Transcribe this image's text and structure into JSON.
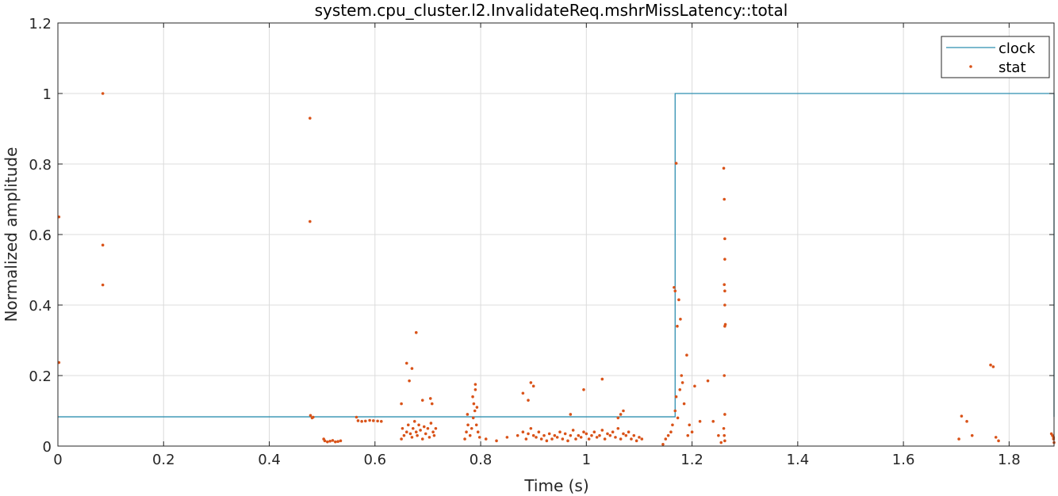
{
  "chart_data": {
    "type": "line",
    "title": "system.cpu_cluster.l2.InvalidateReq.mshrMissLatency::total",
    "xlabel": "Time (s)",
    "ylabel": "Normalized amplitude",
    "xlim": [
      0,
      1.885
    ],
    "ylim": [
      0,
      1.2
    ],
    "xticks": [
      0,
      0.2,
      0.4,
      0.6,
      0.8,
      1,
      1.2,
      1.4,
      1.6,
      1.8
    ],
    "xtick_labels": [
      "0",
      "0.2",
      "0.4",
      "0.6",
      "0.8",
      "1",
      "1.2",
      "1.4",
      "1.6",
      "1.8"
    ],
    "yticks": [
      0,
      0.2,
      0.4,
      0.6,
      0.8,
      1,
      1.2
    ],
    "ytick_labels": [
      "0",
      "0.2",
      "0.4",
      "0.6",
      "0.8",
      "1",
      "1.2"
    ],
    "grid": true,
    "legend_position": "top-right",
    "series": [
      {
        "name": "clock",
        "style": "line",
        "color": "#2f8fb0",
        "x": [
          0,
          1.168,
          1.168,
          1.885,
          1.885
        ],
        "y": [
          0.083,
          0.083,
          1.0,
          1.0,
          0.083
        ]
      },
      {
        "name": "stat",
        "style": "markers",
        "color": "#d95319",
        "x": [
          0.002,
          0.002,
          0.085,
          0.085,
          0.085,
          0.477,
          0.477,
          0.478,
          0.481,
          0.483,
          0.503,
          0.505,
          0.51,
          0.515,
          0.52,
          0.525,
          0.53,
          0.535,
          0.565,
          0.568,
          0.575,
          0.582,
          0.59,
          0.597,
          0.605,
          0.612,
          0.65,
          0.652,
          0.655,
          0.66,
          0.663,
          0.667,
          0.67,
          0.672,
          0.675,
          0.678,
          0.68,
          0.683,
          0.686,
          0.69,
          0.693,
          0.696,
          0.7,
          0.703,
          0.706,
          0.71,
          0.712,
          0.715,
          0.678,
          0.67,
          0.665,
          0.69,
          0.705,
          0.708,
          0.66,
          0.65,
          0.77,
          0.773,
          0.776,
          0.78,
          0.783,
          0.786,
          0.789,
          0.792,
          0.795,
          0.798,
          0.785,
          0.79,
          0.79,
          0.787,
          0.793,
          0.775,
          0.81,
          0.83,
          0.85,
          0.87,
          0.88,
          0.886,
          0.89,
          0.895,
          0.9,
          0.905,
          0.91,
          0.915,
          0.92,
          0.925,
          0.93,
          0.935,
          0.94,
          0.945,
          0.95,
          0.955,
          0.96,
          0.965,
          0.97,
          0.975,
          0.98,
          0.985,
          0.99,
          0.995,
          1.0,
          1.005,
          1.01,
          1.015,
          1.02,
          1.025,
          1.03,
          1.035,
          1.04,
          1.045,
          1.05,
          1.055,
          1.06,
          1.065,
          1.07,
          1.075,
          1.08,
          1.085,
          1.09,
          1.095,
          1.1,
          1.105,
          0.9,
          0.895,
          0.97,
          0.995,
          1.03,
          1.06,
          1.065,
          1.07,
          0.88,
          0.89,
          1.145,
          1.15,
          1.155,
          1.16,
          1.163,
          1.166,
          1.168,
          1.17,
          1.172,
          1.175,
          1.178,
          1.18,
          1.182,
          1.185,
          1.19,
          1.195,
          1.168,
          1.17,
          1.173,
          1.177,
          1.192,
          1.2,
          1.205,
          1.215,
          1.23,
          1.24,
          1.25,
          1.255,
          1.26,
          1.261,
          1.262,
          1.262,
          1.261,
          1.262,
          1.262,
          1.263,
          1.262,
          1.261,
          1.262,
          1.26,
          1.261,
          1.262,
          1.705,
          1.71,
          1.72,
          1.73,
          1.765,
          1.77,
          1.775,
          1.78,
          1.88,
          1.882,
          1.884,
          1.885,
          1.884
        ],
        "y": [
          0.65,
          0.237,
          1.0,
          0.57,
          0.457,
          0.93,
          0.637,
          0.087,
          0.08,
          0.082,
          0.02,
          0.015,
          0.012,
          0.014,
          0.016,
          0.012,
          0.013,
          0.015,
          0.082,
          0.072,
          0.07,
          0.071,
          0.073,
          0.072,
          0.071,
          0.07,
          0.02,
          0.05,
          0.03,
          0.04,
          0.06,
          0.035,
          0.025,
          0.05,
          0.07,
          0.04,
          0.03,
          0.06,
          0.045,
          0.02,
          0.055,
          0.035,
          0.05,
          0.025,
          0.065,
          0.04,
          0.03,
          0.05,
          0.322,
          0.22,
          0.185,
          0.13,
          0.135,
          0.12,
          0.235,
          0.12,
          0.02,
          0.04,
          0.06,
          0.03,
          0.05,
          0.08,
          0.1,
          0.06,
          0.04,
          0.025,
          0.14,
          0.16,
          0.175,
          0.12,
          0.11,
          0.09,
          0.02,
          0.015,
          0.025,
          0.03,
          0.04,
          0.02,
          0.035,
          0.05,
          0.03,
          0.025,
          0.04,
          0.02,
          0.03,
          0.015,
          0.035,
          0.02,
          0.03,
          0.025,
          0.04,
          0.02,
          0.035,
          0.015,
          0.03,
          0.045,
          0.02,
          0.03,
          0.025,
          0.04,
          0.035,
          0.02,
          0.03,
          0.04,
          0.025,
          0.03,
          0.045,
          0.02,
          0.035,
          0.03,
          0.04,
          0.025,
          0.05,
          0.02,
          0.035,
          0.03,
          0.04,
          0.02,
          0.03,
          0.015,
          0.025,
          0.02,
          0.17,
          0.18,
          0.09,
          0.16,
          0.19,
          0.08,
          0.09,
          0.1,
          0.15,
          0.13,
          0.005,
          0.02,
          0.03,
          0.04,
          0.06,
          0.45,
          0.44,
          0.802,
          0.34,
          0.415,
          0.36,
          0.2,
          0.18,
          0.12,
          0.258,
          0.06,
          0.1,
          0.14,
          0.08,
          0.16,
          0.03,
          0.04,
          0.17,
          0.07,
          0.185,
          0.07,
          0.03,
          0.01,
          0.788,
          0.7,
          0.588,
          0.53,
          0.458,
          0.44,
          0.4,
          0.345,
          0.34,
          0.2,
          0.09,
          0.05,
          0.03,
          0.015,
          0.02,
          0.085,
          0.07,
          0.03,
          0.23,
          0.225,
          0.025,
          0.015,
          0.035,
          0.03,
          0.02,
          0.01,
          0.025
        ]
      }
    ]
  }
}
